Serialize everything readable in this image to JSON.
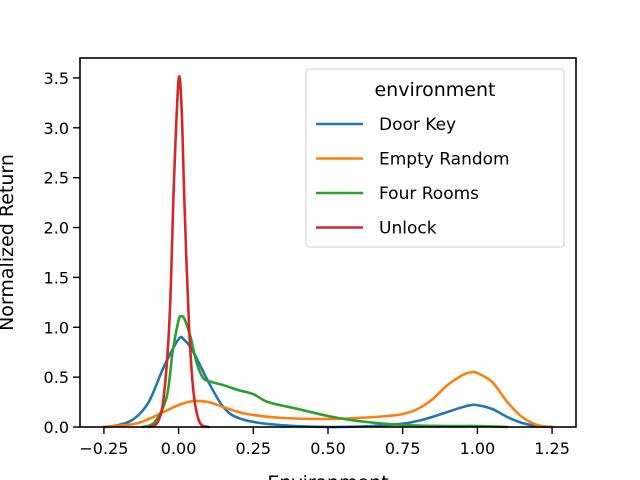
{
  "chart_data": {
    "type": "line",
    "title": "",
    "xlabel": "Environment",
    "ylabel": "Normalized Return",
    "xlim": [
      -0.33,
      1.33
    ],
    "ylim": [
      0.0,
      3.7
    ],
    "xticks": [
      -0.25,
      0.0,
      0.25,
      0.5,
      0.75,
      1.0,
      1.25
    ],
    "xtick_labels": [
      "−0.25",
      "0.00",
      "0.25",
      "0.50",
      "0.75",
      "1.00",
      "1.25"
    ],
    "yticks": [
      0.0,
      0.5,
      1.0,
      1.5,
      2.0,
      2.5,
      3.0,
      3.5
    ],
    "ytick_labels": [
      "0.0",
      "0.5",
      "1.0",
      "1.5",
      "2.0",
      "2.5",
      "3.0",
      "3.5"
    ],
    "grid": false,
    "legend": {
      "title": "environment",
      "placement": "top-right"
    },
    "series": [
      {
        "name": "Door Key",
        "color": "#1f77b4",
        "points": [
          [
            -0.25,
            0.0
          ],
          [
            -0.2,
            0.02
          ],
          [
            -0.15,
            0.08
          ],
          [
            -0.1,
            0.25
          ],
          [
            -0.05,
            0.6
          ],
          [
            0.0,
            0.88
          ],
          [
            0.02,
            0.87
          ],
          [
            0.05,
            0.75
          ],
          [
            0.1,
            0.45
          ],
          [
            0.15,
            0.2
          ],
          [
            0.2,
            0.09
          ],
          [
            0.3,
            0.03
          ],
          [
            0.5,
            0.0
          ],
          [
            0.7,
            0.02
          ],
          [
            0.8,
            0.06
          ],
          [
            0.9,
            0.15
          ],
          [
            0.95,
            0.2
          ],
          [
            0.98,
            0.22
          ],
          [
            1.0,
            0.22
          ],
          [
            1.05,
            0.18
          ],
          [
            1.1,
            0.1
          ],
          [
            1.15,
            0.04
          ],
          [
            1.2,
            0.01
          ],
          [
            1.25,
            0.0
          ]
        ]
      },
      {
        "name": "Empty Random",
        "color": "#ff7f0e",
        "points": [
          [
            -0.25,
            0.0
          ],
          [
            -0.15,
            0.03
          ],
          [
            -0.1,
            0.08
          ],
          [
            -0.05,
            0.15
          ],
          [
            0.0,
            0.22
          ],
          [
            0.05,
            0.26
          ],
          [
            0.1,
            0.25
          ],
          [
            0.15,
            0.2
          ],
          [
            0.2,
            0.15
          ],
          [
            0.25,
            0.12
          ],
          [
            0.35,
            0.09
          ],
          [
            0.5,
            0.08
          ],
          [
            0.6,
            0.09
          ],
          [
            0.7,
            0.11
          ],
          [
            0.75,
            0.13
          ],
          [
            0.8,
            0.18
          ],
          [
            0.85,
            0.28
          ],
          [
            0.9,
            0.42
          ],
          [
            0.95,
            0.52
          ],
          [
            0.98,
            0.55
          ],
          [
            1.0,
            0.54
          ],
          [
            1.05,
            0.45
          ],
          [
            1.1,
            0.25
          ],
          [
            1.15,
            0.1
          ],
          [
            1.2,
            0.02
          ],
          [
            1.25,
            0.0
          ]
        ]
      },
      {
        "name": "Four Rooms",
        "color": "#2ca02c",
        "points": [
          [
            -0.12,
            0.0
          ],
          [
            -0.08,
            0.05
          ],
          [
            -0.04,
            0.3
          ],
          [
            -0.02,
            0.75
          ],
          [
            0.0,
            1.07
          ],
          [
            0.01,
            1.11
          ],
          [
            0.02,
            1.08
          ],
          [
            0.04,
            0.9
          ],
          [
            0.06,
            0.65
          ],
          [
            0.08,
            0.5
          ],
          [
            0.1,
            0.46
          ],
          [
            0.15,
            0.42
          ],
          [
            0.2,
            0.37
          ],
          [
            0.25,
            0.33
          ],
          [
            0.3,
            0.25
          ],
          [
            0.4,
            0.18
          ],
          [
            0.5,
            0.11
          ],
          [
            0.6,
            0.06
          ],
          [
            0.75,
            0.02
          ],
          [
            0.9,
            0.01
          ],
          [
            1.0,
            0.01
          ],
          [
            1.1,
            0.0
          ]
        ]
      },
      {
        "name": "Unlock",
        "color": "#d62728",
        "points": [
          [
            -0.1,
            0.0
          ],
          [
            -0.07,
            0.05
          ],
          [
            -0.05,
            0.3
          ],
          [
            -0.03,
            1.1
          ],
          [
            -0.015,
            2.5
          ],
          [
            0.0,
            3.48
          ],
          [
            0.01,
            3.2
          ],
          [
            0.02,
            2.2
          ],
          [
            0.035,
            1.0
          ],
          [
            0.05,
            0.35
          ],
          [
            0.07,
            0.05
          ],
          [
            0.1,
            0.0
          ]
        ]
      }
    ]
  }
}
